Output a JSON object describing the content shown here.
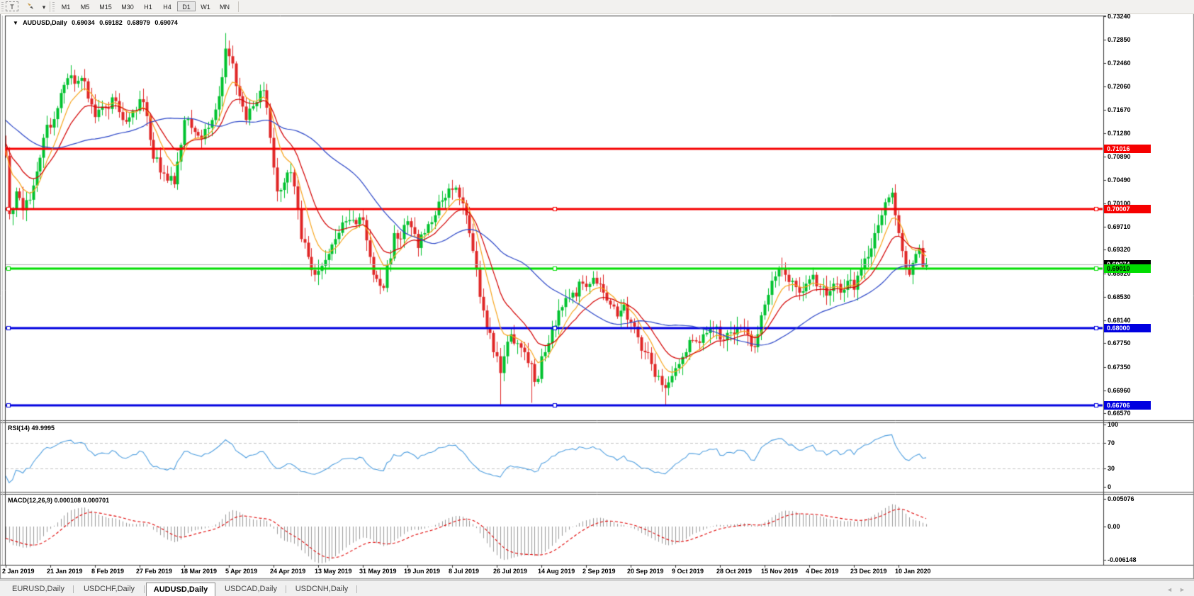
{
  "toolbar": {
    "text_tool_label": "T",
    "timeframes": [
      "M1",
      "M5",
      "M15",
      "M30",
      "H1",
      "H4",
      "D1",
      "W1",
      "MN"
    ],
    "active_timeframe": "D1"
  },
  "chart_header": {
    "symbol_period": "AUDUSD,Daily",
    "open": "0.69034",
    "high": "0.69182",
    "low": "0.68979",
    "close": "0.69074"
  },
  "rsi_panel": {
    "label": "RSI(14)",
    "value": "49.9995",
    "ticks": [
      {
        "label": "100",
        "value": 100
      },
      {
        "label": "70",
        "value": 70
      },
      {
        "label": "30",
        "value": 30
      },
      {
        "label": "0",
        "value": 0
      }
    ],
    "dashed_levels": [
      70,
      30
    ],
    "line_color": "#4f9fe0"
  },
  "macd_panel": {
    "label": "MACD(12,26,9)",
    "value_main": "0.000108",
    "value_signal": "0.000701",
    "ticks": [
      {
        "label": "0.005076",
        "value": 0.005076
      },
      {
        "label": "0.00",
        "value": 0
      },
      {
        "label": "-0.006148",
        "value": -0.006148
      }
    ],
    "histogram_color": "#9a9a9a",
    "signal_color": "#e00000"
  },
  "price_axis_ticks": [
    "0.73240",
    "0.72850",
    "0.72460",
    "0.72060",
    "0.71670",
    "0.71280",
    "0.70890",
    "0.70490",
    "0.70100",
    "0.69710",
    "0.69320",
    "0.68920",
    "0.68530",
    "0.68140",
    "0.67750",
    "0.67350",
    "0.66960",
    "0.66570"
  ],
  "time_axis_labels": [
    "2 Jan 2019",
    "21 Jan 2019",
    "8 Feb 2019",
    "27 Feb 2019",
    "18 Mar 2019",
    "5 Apr 2019",
    "24 Apr 2019",
    "13 May 2019",
    "31 May 2019",
    "19 Jun 2019",
    "8 Jul 2019",
    "26 Jul 2019",
    "14 Aug 2019",
    "2 Sep 2019",
    "20 Sep 2019",
    "9 Oct 2019",
    "28 Oct 2019",
    "15 Nov 2019",
    "4 Dec 2019",
    "23 Dec 2019",
    "10 Jan 2020"
  ],
  "tabs": {
    "items": [
      "EURUSD,Daily",
      "USDCHF,Daily",
      "AUDUSD,Daily",
      "USDCAD,Daily",
      "USDCNH,Daily"
    ],
    "active": "AUDUSD,Daily"
  },
  "colors": {
    "candle_up": "#00c22e",
    "candle_down": "#e02626",
    "ma_fast": "#f8a51c",
    "ma_mid": "#d40000",
    "ma_slow": "#2b46c8",
    "current_price_line": "#b8b8b8",
    "level_red": "#f60000",
    "level_green": "#00dd00",
    "level_blue": "#0000e0"
  },
  "chart_data": {
    "type": "candlestick",
    "symbol": "AUDUSD",
    "timeframe": "Daily",
    "bars": 269,
    "first_open": 0.7105,
    "last_ohlc": {
      "open": 0.69034,
      "high": 0.69182,
      "low": 0.68979,
      "close": 0.69074
    },
    "price_range": [
      0.6657,
      0.7324
    ],
    "close_anchors": [
      [
        0,
        0.709
      ],
      [
        1,
        0.6992
      ],
      [
        3,
        0.703
      ],
      [
        5,
        0.6998
      ],
      [
        8,
        0.704
      ],
      [
        11,
        0.712
      ],
      [
        15,
        0.717
      ],
      [
        19,
        0.7225
      ],
      [
        23,
        0.7215
      ],
      [
        26,
        0.7155
      ],
      [
        29,
        0.717
      ],
      [
        31,
        0.7188
      ],
      [
        34,
        0.715
      ],
      [
        37,
        0.7165
      ],
      [
        40,
        0.718
      ],
      [
        43,
        0.7085
      ],
      [
        46,
        0.706
      ],
      [
        49,
        0.7042
      ],
      [
        52,
        0.715
      ],
      [
        55,
        0.713
      ],
      [
        57,
        0.7118
      ],
      [
        60,
        0.715
      ],
      [
        62,
        0.719
      ],
      [
        64,
        0.727
      ],
      [
        66,
        0.7245
      ],
      [
        68,
        0.719
      ],
      [
        70,
        0.715
      ],
      [
        73,
        0.718
      ],
      [
        75,
        0.72
      ],
      [
        77,
        0.712
      ],
      [
        79,
        0.703
      ],
      [
        81,
        0.7045
      ],
      [
        83,
        0.7062
      ],
      [
        85,
        0.7
      ],
      [
        86,
        0.695
      ],
      [
        88,
        0.692
      ],
      [
        90,
        0.689
      ],
      [
        92,
        0.6905
      ],
      [
        94,
        0.6925
      ],
      [
        96,
        0.695
      ],
      [
        99,
        0.698
      ],
      [
        102,
        0.6975
      ],
      [
        104,
        0.6982
      ],
      [
        106,
        0.692
      ],
      [
        107,
        0.689
      ],
      [
        110,
        0.6868
      ],
      [
        113,
        0.696
      ],
      [
        115,
        0.695
      ],
      [
        117,
        0.698
      ],
      [
        120,
        0.6935
      ],
      [
        122,
        0.696
      ],
      [
        125,
        0.699
      ],
      [
        127,
        0.7015
      ],
      [
        129,
        0.7035
      ],
      [
        132,
        0.702
      ],
      [
        134,
        0.699
      ],
      [
        136,
        0.693
      ],
      [
        139,
        0.683
      ],
      [
        142,
        0.676
      ],
      [
        144,
        0.6725
      ],
      [
        147,
        0.679
      ],
      [
        149,
        0.6775
      ],
      [
        151,
        0.676
      ],
      [
        153,
        0.674
      ],
      [
        154,
        0.671
      ],
      [
        157,
        0.676
      ],
      [
        159,
        0.68
      ],
      [
        161,
        0.683
      ],
      [
        165,
        0.686
      ],
      [
        168,
        0.6875
      ],
      [
        171,
        0.6885
      ],
      [
        174,
        0.686
      ],
      [
        176,
        0.684
      ],
      [
        178,
        0.682
      ],
      [
        180,
        0.684
      ],
      [
        182,
        0.681
      ],
      [
        184,
        0.6785
      ],
      [
        186,
        0.676
      ],
      [
        188,
        0.674
      ],
      [
        190,
        0.672
      ],
      [
        192,
        0.67
      ],
      [
        194,
        0.672
      ],
      [
        196,
        0.674
      ],
      [
        198,
        0.676
      ],
      [
        200,
        0.678
      ],
      [
        203,
        0.679
      ],
      [
        206,
        0.68
      ],
      [
        209,
        0.678
      ],
      [
        212,
        0.679
      ],
      [
        215,
        0.68
      ],
      [
        217,
        0.677
      ],
      [
        219,
        0.679
      ],
      [
        221,
        0.684
      ],
      [
        223,
        0.688
      ],
      [
        225,
        0.69
      ],
      [
        227,
        0.689
      ],
      [
        229,
        0.688
      ],
      [
        231,
        0.686
      ],
      [
        233,
        0.6875
      ],
      [
        235,
        0.689
      ],
      [
        237,
        0.687
      ],
      [
        239,
        0.6855
      ],
      [
        241,
        0.6875
      ],
      [
        243,
        0.686
      ],
      [
        245,
        0.688
      ],
      [
        247,
        0.6865
      ],
      [
        249,
        0.69
      ],
      [
        251,
        0.692
      ],
      [
        253,
        0.696
      ],
      [
        255,
        0.699
      ],
      [
        257,
        0.702
      ],
      [
        258,
        0.7028
      ],
      [
        259,
        0.699
      ],
      [
        260,
        0.696
      ],
      [
        261,
        0.693
      ],
      [
        262,
        0.69
      ],
      [
        263,
        0.689
      ],
      [
        264,
        0.691
      ],
      [
        265,
        0.6925
      ],
      [
        266,
        0.6935
      ],
      [
        267,
        0.69034
      ],
      [
        268,
        0.69074
      ]
    ],
    "wick_overrides": {
      "19": {
        "high": 0.7242
      },
      "64": {
        "high": 0.7296
      },
      "144": {
        "low": 0.6672
      },
      "153": {
        "low": 0.6675
      },
      "192": {
        "low": 0.6671
      },
      "258": {
        "high": 0.7036
      },
      "268": {
        "high": 0.69182,
        "low": 0.68979
      }
    },
    "history_seed": {
      "bars": 60,
      "from": 0.728,
      "to": 0.709
    },
    "moving_averages": [
      {
        "type": "ema",
        "period": 8,
        "color": "#f8a51c"
      },
      {
        "type": "ema",
        "period": 16,
        "color": "#d40000"
      },
      {
        "type": "sma",
        "period": 40,
        "color": "#2b46c8"
      }
    ],
    "horizontal_lines": [
      {
        "price": 0.71016,
        "label": "0.71016",
        "color": "#f60000",
        "width": 3,
        "text": "#fff",
        "markers": false
      },
      {
        "price": 0.70007,
        "label": "0.70007",
        "color": "#f60000",
        "width": 3,
        "text": "#fff",
        "markers": true
      },
      {
        "price": 0.6901,
        "label": "0.69010",
        "color": "#00dd00",
        "width": 3,
        "text": "#000",
        "markers": true
      },
      {
        "price": 0.68,
        "label": "0.68000",
        "color": "#0000e0",
        "width": 3,
        "text": "#fff",
        "markers": true
      },
      {
        "price": 0.66706,
        "label": "0.66706",
        "color": "#0000e0",
        "width": 3,
        "text": "#fff",
        "markers": true
      }
    ],
    "current_price": {
      "value": 0.69074,
      "label": "0.69074",
      "line_color": "#b8b8b8",
      "badge_bg": "#000",
      "text": "#fff"
    },
    "indicators": [
      {
        "name": "RSI",
        "period": 14,
        "current": 49.9995,
        "range": [
          0,
          100
        ],
        "levels": [
          70,
          30
        ]
      },
      {
        "name": "MACD",
        "fast": 12,
        "slow": 26,
        "signal": 9,
        "current_main": 0.000108,
        "current_signal": 0.000701,
        "axis_ticks": [
          0.005076,
          0,
          -0.006148
        ]
      }
    ]
  }
}
